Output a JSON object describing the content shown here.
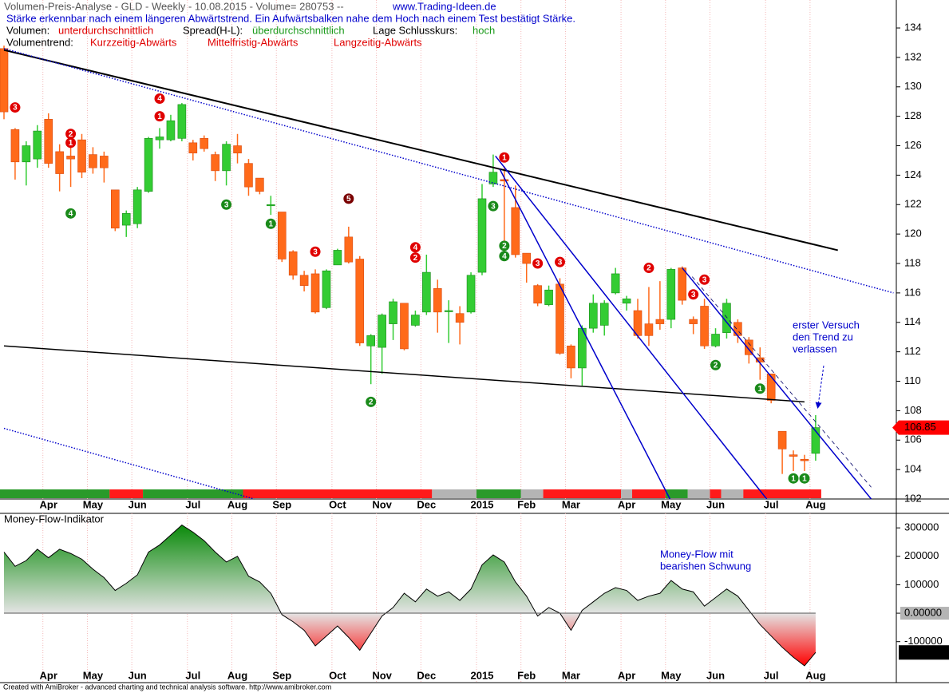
{
  "header": {
    "title": "Volumen-Preis-Analyse - GLD - Weekly  - 10.08.2015 - Volume= 280753 --",
    "website": "www.Trading-Ideen.de",
    "comment": "Stärke erkennbar nach einem längeren Abwärtstrend. Ein Aufwärtsbalken nahe dem Hoch nach einem Test bestätigt Stärke.",
    "volume_label": "Volumen:",
    "volume_value": "unterdurchschnittlich",
    "spread_label": "Spread(H-L):",
    "spread_value": "überdurchschnittlich",
    "close_label": "Lage Schlusskurs:",
    "close_value": "hoch",
    "trend_label": "Volumentrend:",
    "trend_short": "Kurzzeitig-Abwärts",
    "trend_mid": "Mittelfristig-Abwärts",
    "trend_long": "Langzeitig-Abwärts"
  },
  "footer": "Created with AmiBroker - advanced charting and technical analysis software. http://www.amibroker.com",
  "chart_data": [
    {
      "type": "candlestick",
      "categories": [
        null,
        null,
        null,
        null,
        "Apr",
        null,
        null,
        null,
        "May",
        null,
        null,
        null,
        "Jun",
        null,
        null,
        null,
        null,
        "Jul",
        null,
        null,
        null,
        "Aug",
        null,
        null,
        null,
        "Sep",
        null,
        null,
        null,
        null,
        "Oct",
        null,
        null,
        null,
        "Nov",
        null,
        null,
        null,
        "Dec",
        null,
        null,
        null,
        null,
        "2015",
        null,
        null,
        null,
        "Feb",
        null,
        null,
        null,
        "Mar",
        null,
        null,
        null,
        null,
        "Apr",
        null,
        null,
        null,
        "May",
        null,
        null,
        null,
        "Jun",
        null,
        null,
        null,
        null,
        "Jul",
        null,
        null,
        null,
        "Aug"
      ],
      "open": [
        132.6,
        127.1,
        124.9,
        125.1,
        127.8,
        125.6,
        125.3,
        126.4,
        125.4,
        125.3,
        123,
        120.6,
        120.7,
        122.9,
        126.4,
        126.4,
        126.5,
        126.2,
        126.5,
        125.4,
        124.3,
        126,
        124.8,
        123.8,
        122,
        121.5,
        118.8,
        117.2,
        117.3,
        115,
        117.9,
        119.8,
        118.3,
        112.4,
        112.3,
        113.9,
        115.3,
        113.8,
        114.7,
        116.3,
        114.8,
        114.6,
        114.7,
        117.4,
        123.4,
        123.7,
        121.8,
        118.7,
        116.5,
        115.2,
        116.6,
        112.4,
        110.9,
        113.6,
        113.8,
        116,
        115.3,
        114.8,
        113.9,
        114.2,
        114.2,
        117.7,
        114.2,
        115.1,
        112.4,
        113.3,
        114,
        112.8,
        111.6,
        110.5,
        106.6,
        105,
        104.7,
        105.1
      ],
      "high": [
        132.8,
        127.2,
        126.3,
        127.4,
        128.2,
        126.1,
        126.8,
        126.8,
        125.9,
        125.6,
        123,
        121.6,
        123.2,
        126.6,
        127.2,
        128.1,
        128.9,
        126.4,
        126.7,
        125.6,
        126.3,
        126.8,
        125.1,
        123.8,
        122.6,
        121.5,
        118.9,
        117.5,
        117.6,
        117.6,
        119,
        120.5,
        118.5,
        113.2,
        114.6,
        115.6,
        115.3,
        114.8,
        118.6,
        116.9,
        115.5,
        115.1,
        117.4,
        123.4,
        125.4,
        124.6,
        123.3,
        118.7,
        116.6,
        116.5,
        117,
        112.5,
        113.8,
        115.9,
        115.5,
        117.7,
        115.8,
        115.6,
        116.4,
        116.8,
        117.7,
        117.8,
        114.4,
        115.6,
        113.6,
        115.6,
        114.2,
        113,
        112.3,
        110.5,
        106.6,
        105.3,
        105,
        107.7
      ],
      "low": [
        127.8,
        123.7,
        123.3,
        124.5,
        124.5,
        122.9,
        123.2,
        123.8,
        124.1,
        123.5,
        120.2,
        119.8,
        120.4,
        122.8,
        125.8,
        126.3,
        126.3,
        125,
        125.6,
        123.6,
        123.3,
        124.8,
        122.6,
        122.7,
        121.3,
        118.1,
        116.9,
        116.1,
        114.6,
        114.9,
        117.9,
        118,
        112.4,
        109.8,
        110.5,
        112.8,
        112.1,
        113.7,
        114.5,
        113.3,
        112.6,
        112.5,
        114.6,
        117.2,
        123.2,
        118.2,
        118.4,
        116.7,
        115.1,
        115.1,
        111.8,
        110.2,
        109.7,
        113.3,
        113.1,
        115.9,
        114.8,
        112.9,
        112.4,
        113.5,
        113.6,
        115.2,
        113.2,
        112.2,
        112.3,
        112.9,
        112.6,
        111.2,
        110.1,
        108.5,
        103.7,
        103.9,
        103.9,
        104.6
      ],
      "close": [
        128.3,
        124.9,
        126,
        127,
        124.8,
        124.1,
        125.1,
        124.2,
        124.5,
        124.5,
        120.4,
        121.4,
        123,
        126.5,
        126.6,
        127.7,
        128.8,
        125.5,
        125.8,
        124.3,
        126.1,
        125.5,
        123.2,
        122.9,
        122,
        118.3,
        117.2,
        116.5,
        114.7,
        117.5,
        118.9,
        118.1,
        112.6,
        113.1,
        114.5,
        115.4,
        112.2,
        114.5,
        117.4,
        114.7,
        114.8,
        114,
        117.2,
        122.4,
        124.2,
        123.6,
        118.6,
        118,
        115.3,
        116.2,
        111.9,
        110.9,
        113.6,
        115.3,
        115.3,
        117.3,
        115.6,
        113.1,
        113.1,
        113.9,
        117.6,
        115.5,
        113.9,
        112.4,
        113.2,
        115.3,
        113.1,
        111.8,
        111.3,
        108.7,
        105.4,
        104.9,
        104.6,
        106.85
      ],
      "up_color": "#33cc33",
      "down_color": "#ff6a1a",
      "ylim": [
        102,
        135.9
      ],
      "yticks": [
        102,
        104,
        106,
        108,
        110,
        112,
        114,
        116,
        118,
        120,
        122,
        124,
        126,
        128,
        130,
        132,
        134
      ],
      "vgrid": true,
      "signals": [
        {
          "x": 1,
          "y": 128.6,
          "label": "3",
          "color": "#e00000"
        },
        {
          "x": 14,
          "y": 129.2,
          "label": "4",
          "color": "#e00000"
        },
        {
          "x": 14,
          "y": 128,
          "label": "1",
          "color": "#e00000"
        },
        {
          "x": 6,
          "y": 126.8,
          "label": "2",
          "color": "#e00000"
        },
        {
          "x": 6,
          "y": 126.2,
          "label": "1",
          "color": "#e00000"
        },
        {
          "x": 6,
          "y": 121.4,
          "label": "4",
          "color": "#1a8a1a"
        },
        {
          "x": 20,
          "y": 122,
          "label": "3",
          "color": "#1a8a1a"
        },
        {
          "x": 24,
          "y": 120.7,
          "label": "1",
          "color": "#1a8a1a"
        },
        {
          "x": 31,
          "y": 122.4,
          "label": "5",
          "color": "#7a0000"
        },
        {
          "x": 28,
          "y": 118.8,
          "label": "3",
          "color": "#e00000"
        },
        {
          "x": 37,
          "y": 119.1,
          "label": "4",
          "color": "#e00000"
        },
        {
          "x": 37,
          "y": 118.4,
          "label": "2",
          "color": "#e00000"
        },
        {
          "x": 33,
          "y": 108.6,
          "label": "2",
          "color": "#1a8a1a"
        },
        {
          "x": 45,
          "y": 125.2,
          "label": "1",
          "color": "#e00000"
        },
        {
          "x": 44,
          "y": 121.9,
          "label": "3",
          "color": "#1a8a1a"
        },
        {
          "x": 45,
          "y": 119.2,
          "label": "2",
          "color": "#1a8a1a"
        },
        {
          "x": 45,
          "y": 118.5,
          "label": "4",
          "color": "#1a8a1a"
        },
        {
          "x": 48,
          "y": 118,
          "label": "3",
          "color": "#e00000"
        },
        {
          "x": 50,
          "y": 118.1,
          "label": "3",
          "color": "#e00000"
        },
        {
          "x": 58,
          "y": 117.7,
          "label": "2",
          "color": "#e00000"
        },
        {
          "x": 63,
          "y": 116.9,
          "label": "3",
          "color": "#e00000"
        },
        {
          "x": 62,
          "y": 115.9,
          "label": "3",
          "color": "#e00000"
        },
        {
          "x": 64,
          "y": 111.1,
          "label": "2",
          "color": "#1a8a1a"
        },
        {
          "x": 68,
          "y": 109.5,
          "label": "1",
          "color": "#1a8a1a"
        },
        {
          "x": 71,
          "y": 103.4,
          "label": "1",
          "color": "#1a8a1a"
        },
        {
          "x": 72,
          "y": 103.4,
          "label": "1",
          "color": "#1a8a1a"
        }
      ],
      "trendlines": [
        {
          "x": [
            0,
            75
          ],
          "y": [
            132.5,
            118.9
          ],
          "color": "#000000",
          "style": "solid",
          "width": 2
        },
        {
          "x": [
            0,
            80
          ],
          "y": [
            132.6,
            116
          ],
          "color": "#0000cc",
          "style": "dotted",
          "width": 1.5
        },
        {
          "x": [
            0,
            72
          ],
          "y": [
            112.4,
            108.6
          ],
          "color": "#000000",
          "style": "solid",
          "width": 1.5
        },
        {
          "x": [
            0,
            22.5
          ],
          "y": [
            106.8,
            102
          ],
          "color": "#0000cc",
          "style": "dotted",
          "width": 1.5
        },
        {
          "x": [
            44.2,
            68.6
          ],
          "y": [
            125.3,
            102
          ],
          "color": "#0000cc",
          "style": "solid",
          "width": 1.5
        },
        {
          "x": [
            44.6,
            59.9
          ],
          "y": [
            124.4,
            102
          ],
          "color": "#0000cc",
          "style": "solid",
          "width": 1.5
        },
        {
          "x": [
            61,
            78
          ],
          "y": [
            117.7,
            102
          ],
          "color": "#0000cc",
          "style": "solid",
          "width": 1.5
        },
        {
          "x": [
            61.9,
            78
          ],
          "y": [
            117.1,
            102.8
          ],
          "color": "#000066",
          "style": "dashed",
          "width": 0.8
        }
      ],
      "trend_bar": [
        {
          "from": 0,
          "to": 9,
          "color": "#2a9a2a"
        },
        {
          "from": 10,
          "to": 12,
          "color": "#ff1a1a"
        },
        {
          "from": 13,
          "to": 21,
          "color": "#2a9a2a"
        },
        {
          "from": 22,
          "to": 38,
          "color": "#ff1a1a"
        },
        {
          "from": 39,
          "to": 42,
          "color": "#b4b4b4"
        },
        {
          "from": 43,
          "to": 46,
          "color": "#2a9a2a"
        },
        {
          "from": 47,
          "to": 48,
          "color": "#b4b4b4"
        },
        {
          "from": 49,
          "to": 55,
          "color": "#ff1a1a"
        },
        {
          "from": 56,
          "to": 56,
          "color": "#b4b4b4"
        },
        {
          "from": 57,
          "to": 59,
          "color": "#ff1a1a"
        },
        {
          "from": 60,
          "to": 61,
          "color": "#2a9a2a"
        },
        {
          "from": 62,
          "to": 63,
          "color": "#b4b4b4"
        },
        {
          "from": 64,
          "to": 64,
          "color": "#ff1a1a"
        },
        {
          "from": 65,
          "to": 66,
          "color": "#b4b4b4"
        },
        {
          "from": 67,
          "to": 73,
          "color": "#ff1a1a"
        }
      ],
      "annotation": [
        "erster Versuch",
        "den Trend zu",
        "verlassen"
      ]
    },
    {
      "type": "area",
      "title": "Money-Flow-Indikator",
      "categories": [
        null,
        null,
        null,
        null,
        "Apr",
        null,
        null,
        null,
        "May",
        null,
        null,
        null,
        "Jun",
        null,
        null,
        null,
        null,
        "Jul",
        null,
        null,
        null,
        "Aug",
        null,
        null,
        null,
        "Sep",
        null,
        null,
        null,
        null,
        "Oct",
        null,
        null,
        null,
        "Nov",
        null,
        null,
        null,
        "Dec",
        null,
        null,
        null,
        null,
        "2015",
        null,
        null,
        null,
        "Feb",
        null,
        null,
        null,
        "Mar",
        null,
        null,
        null,
        null,
        "Apr",
        null,
        null,
        null,
        "May",
        null,
        null,
        null,
        "Jun",
        null,
        null,
        null,
        null,
        "Jul",
        null,
        null,
        null,
        "Aug"
      ],
      "values": [
        215000,
        165000,
        185000,
        225000,
        195000,
        225000,
        210000,
        190000,
        155000,
        125000,
        80000,
        105000,
        135000,
        215000,
        240000,
        275000,
        310000,
        285000,
        255000,
        215000,
        180000,
        200000,
        130000,
        110000,
        70000,
        -5000,
        -30000,
        -60000,
        -115000,
        -80000,
        -45000,
        -85000,
        -130000,
        -70000,
        -10000,
        20000,
        70000,
        40000,
        85000,
        60000,
        75000,
        45000,
        85000,
        170000,
        205000,
        180000,
        110000,
        60000,
        -10000,
        20000,
        0,
        -60000,
        10000,
        40000,
        70000,
        90000,
        80000,
        45000,
        60000,
        70000,
        115000,
        85000,
        75000,
        25000,
        55000,
        85000,
        60000,
        10000,
        -40000,
        -80000,
        -120000,
        -155000,
        -185000,
        -137947
      ],
      "pos_color": "#0a8a0a",
      "neg_color": "#ff0000",
      "ylim": [
        -244000,
        351000
      ],
      "yticks": [
        300000,
        200000,
        100000,
        {
          "value": 0,
          "label": "0.00000"
        },
        -100000
      ],
      "vgrid": true,
      "annotation": [
        "Money-Flow mit",
        "bearishen Schwung"
      ]
    }
  ]
}
